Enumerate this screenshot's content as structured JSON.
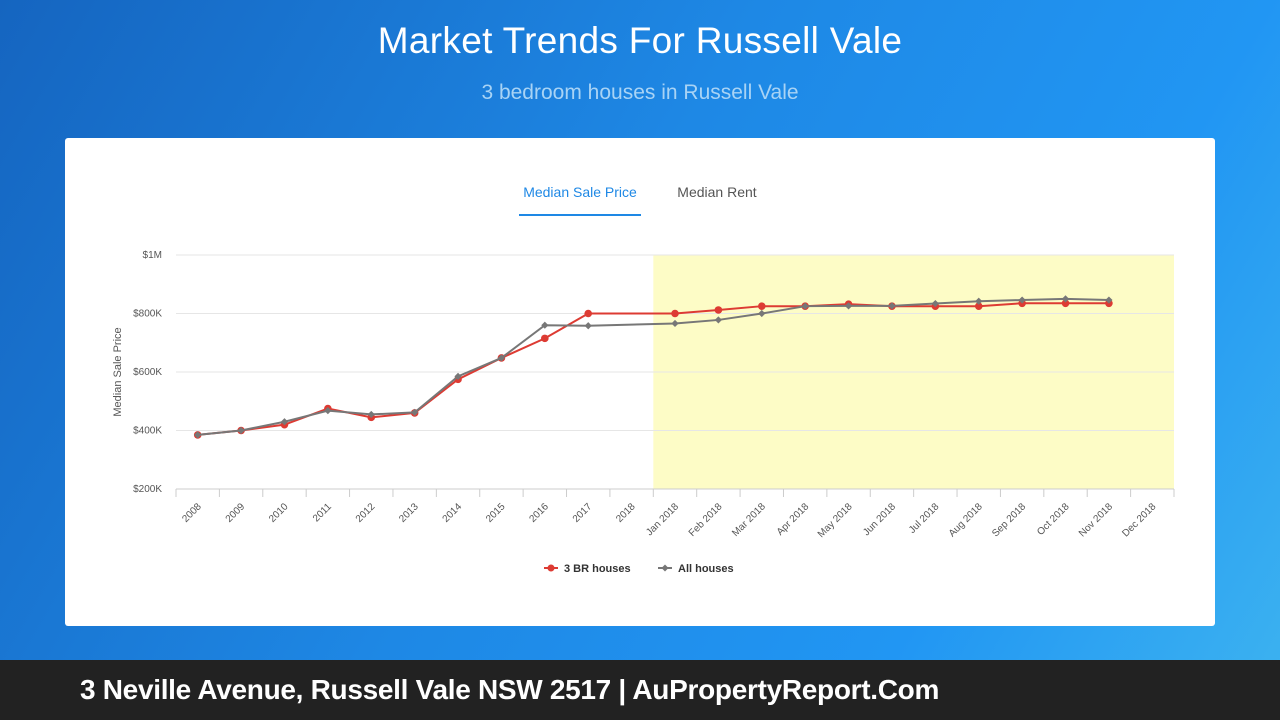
{
  "header": {
    "title": "Market Trends For Russell Vale",
    "subtitle": "3 bedroom houses in Russell Vale"
  },
  "tabs": [
    {
      "label": "Median Sale Price",
      "active": true
    },
    {
      "label": "Median Rent",
      "active": false
    }
  ],
  "footer": {
    "text": "3 Neville Avenue, Russell Vale NSW 2517 | AuPropertyReport.Com"
  },
  "colors": {
    "series_3br": "#dd3b33",
    "series_all": "#777777",
    "highlight": "#fdfcc6",
    "active_tab": "#1e88e5"
  },
  "chart_data": {
    "type": "line",
    "title": "",
    "ylabel": "Median Sale Price",
    "xlabel": "",
    "ylim": [
      200000,
      1000000
    ],
    "yticks": [
      {
        "value": 200000,
        "label": "$200K"
      },
      {
        "value": 400000,
        "label": "$400K"
      },
      {
        "value": 600000,
        "label": "$600K"
      },
      {
        "value": 800000,
        "label": "$800K"
      },
      {
        "value": 1000000,
        "label": "$1M"
      }
    ],
    "categories": [
      "2008",
      "2009",
      "2010",
      "2011",
      "2012",
      "2013",
      "2014",
      "2015",
      "2016",
      "2017",
      "2018",
      "Jan 2018",
      "Feb 2018",
      "Mar 2018",
      "Apr 2018",
      "May 2018",
      "Jun 2018",
      "Jul 2018",
      "Aug 2018",
      "Sep 2018",
      "Oct 2018",
      "Nov 2018",
      "Dec 2018"
    ],
    "highlight_range": [
      "Jan 2018",
      "Dec 2018"
    ],
    "legend_position": "bottom-center",
    "grid": true,
    "series": [
      {
        "name": "3 BR houses",
        "marker": "circle",
        "values": [
          385000,
          400000,
          420000,
          475000,
          445000,
          460000,
          575000,
          648000,
          715000,
          800000,
          null,
          800000,
          812000,
          825000,
          825000,
          832000,
          825000,
          825000,
          825000,
          835000,
          835000,
          835000,
          null
        ]
      },
      {
        "name": "All houses",
        "marker": "diamond",
        "values": [
          385000,
          400000,
          430000,
          468000,
          455000,
          462000,
          585000,
          648000,
          760000,
          758000,
          null,
          766000,
          778000,
          800000,
          825000,
          826000,
          826000,
          834000,
          842000,
          846000,
          850000,
          846000,
          null
        ]
      }
    ]
  }
}
